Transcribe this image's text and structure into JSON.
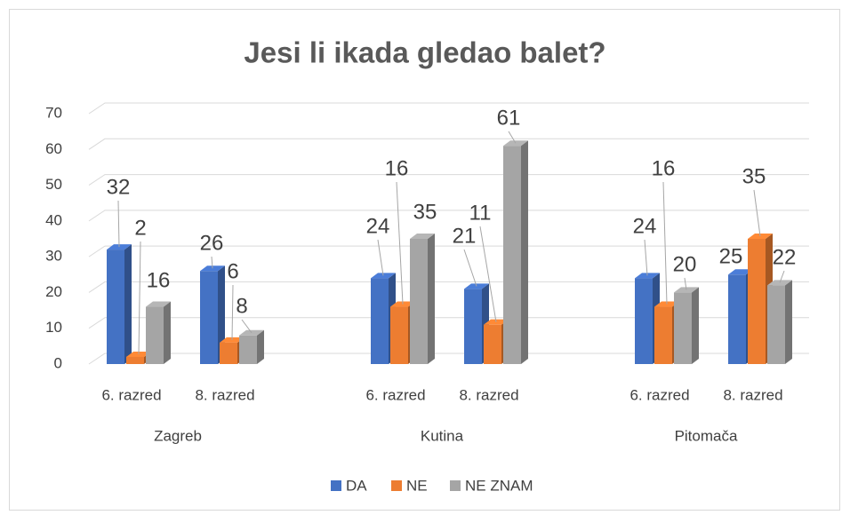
{
  "chart_data": {
    "type": "bar3d",
    "title": "Jesi li ikada gledao balet?",
    "categories": [
      "6. razred",
      "8. razred",
      "6. razred",
      "8. razred",
      "6. razred",
      "8. razred"
    ],
    "groups": [
      "Zagreb",
      "Kutina",
      "Pitomača"
    ],
    "series": [
      {
        "name": "DA",
        "color": "#4472c4",
        "values": [
          32,
          26,
          24,
          21,
          24,
          25
        ]
      },
      {
        "name": "NE",
        "color": "#ed7d31",
        "values": [
          2,
          6,
          16,
          11,
          16,
          35
        ]
      },
      {
        "name": "NE ZNAM",
        "color": "#a5a5a5",
        "values": [
          16,
          8,
          35,
          61,
          20,
          22
        ]
      }
    ],
    "ylim": [
      0,
      70
    ],
    "yticks": [
      0,
      10,
      20,
      30,
      40,
      50,
      60,
      70
    ],
    "grid": true,
    "legend": "bottom"
  }
}
